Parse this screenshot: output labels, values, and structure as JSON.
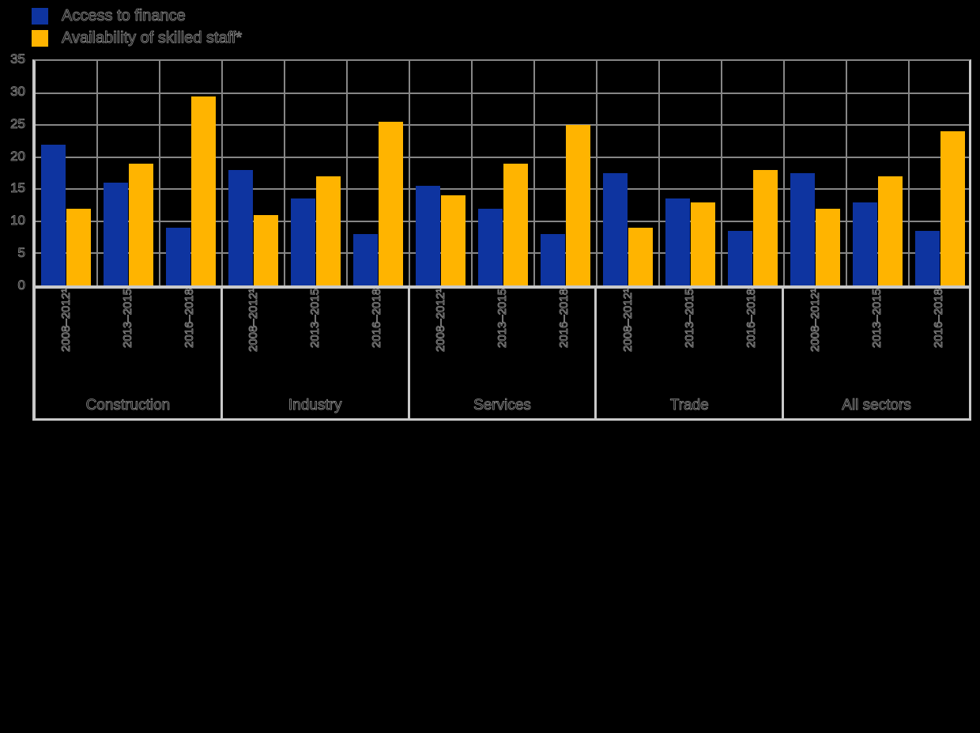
{
  "background_color": "#000000",
  "colors": {
    "gridline": "#868686",
    "axis_frame": "#c9c9c9",
    "series_blue": "#0e34a0",
    "series_yellow": "#ffb400"
  },
  "chart_data": {
    "type": "bar",
    "title": "",
    "xlabel": "",
    "ylabel": "",
    "ylim": [
      0,
      35
    ],
    "yticks": [
      0,
      5,
      10,
      15,
      20,
      25,
      30,
      35
    ],
    "grid": true,
    "legend_position": "top-left",
    "categories": [
      "Construction",
      "Industry",
      "Services",
      "Trade",
      "All sectors"
    ],
    "subcategories": [
      "2008–2012¹",
      "2013–2015",
      "2016–2018"
    ],
    "series": [
      {
        "name": "Access to finance",
        "color": "#0e34a0",
        "values": [
          [
            22,
            16,
            9
          ],
          [
            18,
            13.5,
            8
          ],
          [
            15.5,
            12,
            8
          ],
          [
            17.5,
            13.5,
            8.5
          ],
          [
            17.5,
            13,
            8.5
          ]
        ]
      },
      {
        "name": "Availability of skilled staff*",
        "color": "#ffb400",
        "values": [
          [
            12,
            19,
            29.5
          ],
          [
            11,
            17,
            25.5
          ],
          [
            14,
            19,
            25
          ],
          [
            9,
            13,
            18
          ],
          [
            12,
            17,
            24
          ]
        ]
      }
    ]
  }
}
